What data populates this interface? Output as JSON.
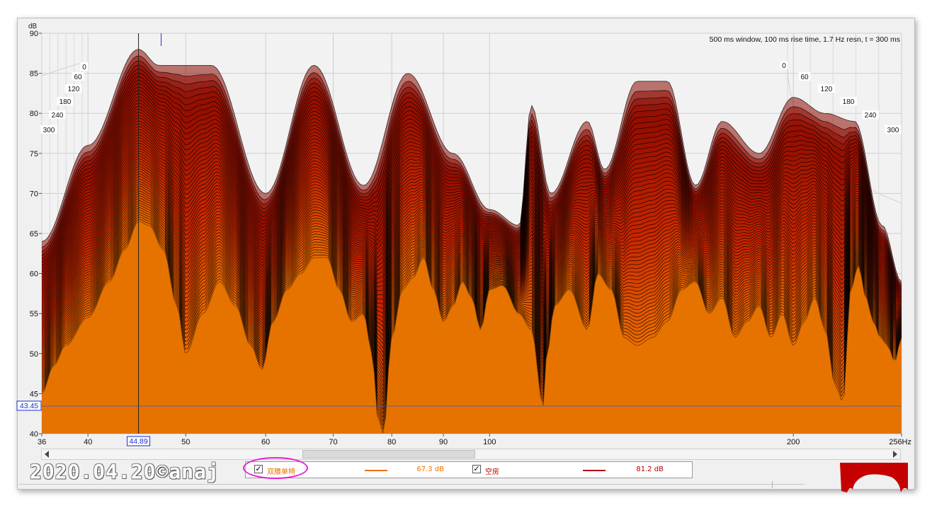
{
  "window": {
    "title": ""
  },
  "chart_data": {
    "type": "waterfall",
    "x_unit": "Hz",
    "y_unit": "dB",
    "xscale": "log",
    "xlim": [
      36,
      256
    ],
    "ylim": [
      40,
      90
    ],
    "x_ticks": [
      36,
      40,
      50,
      60,
      70,
      80,
      90,
      100,
      200,
      256
    ],
    "x_tick_labels": [
      "36",
      "40",
      "50",
      "60",
      "70",
      "80",
      "90",
      "100",
      "200",
      "256Hz"
    ],
    "y_ticks": [
      40,
      45,
      50,
      55,
      60,
      65,
      70,
      75,
      80,
      85,
      90
    ],
    "y_unit_label": "dB",
    "info_text": "500 ms window, 100 ms rise time,  1.7 Hz resn, t = 300 ms",
    "time_ticks_left": [
      "0",
      "60",
      "120",
      "180",
      "240",
      "300"
    ],
    "time_ticks_right": [
      "0",
      "60",
      "120",
      "180",
      "240",
      "300"
    ],
    "cursor": {
      "x": 44.89,
      "x_label": "44.89",
      "y": 43.45,
      "y_label": "43.45"
    },
    "grid": true,
    "slice_count": 60,
    "front_curve_300ms": {
      "x": [
        36,
        37,
        38,
        40,
        42,
        43.5,
        44.89,
        46,
        47.5,
        49,
        50,
        52,
        54,
        56,
        58,
        59.5,
        61,
        63,
        65,
        67,
        69,
        71,
        73,
        75,
        76.5,
        77.5,
        78.5,
        80,
        82,
        84,
        86,
        88,
        90,
        92,
        94,
        96,
        98,
        100,
        103,
        107,
        110,
        113,
        114,
        116,
        120,
        125,
        128,
        132,
        136,
        140,
        145,
        150,
        155,
        160,
        165,
        170,
        175,
        180,
        185,
        190,
        195,
        200,
        205,
        210,
        215,
        220,
        224,
        228,
        232,
        236,
        240,
        244,
        248,
        252,
        256
      ],
      "y": [
        45,
        48.5,
        51,
        54.5,
        59,
        63,
        66.5,
        66,
        63,
        56,
        50,
        55,
        59,
        56,
        51,
        48,
        54,
        58,
        60,
        62,
        62,
        58,
        54,
        55,
        50,
        42,
        40,
        52,
        58,
        59.5,
        62,
        58,
        54,
        56,
        59,
        57,
        53,
        58,
        58.5,
        55,
        53,
        43.5,
        50,
        56,
        58,
        53,
        60,
        58,
        52,
        51,
        52,
        54,
        58,
        59,
        55,
        57,
        52,
        54,
        56,
        52,
        55,
        51,
        54,
        57,
        53,
        46,
        44,
        58,
        61,
        57,
        54,
        52,
        51,
        49,
        52
      ]
    },
    "back_curve_0ms": {
      "x": [
        36,
        40,
        44.89,
        47,
        53,
        60,
        67,
        75,
        83,
        92,
        100,
        107,
        110,
        115,
        125,
        130,
        140,
        150,
        160,
        170,
        185,
        200,
        215,
        230,
        245,
        256
      ],
      "y": [
        64,
        76,
        88,
        86,
        86,
        70,
        86,
        71,
        85,
        75,
        68,
        66,
        81,
        70,
        79,
        73,
        84,
        84,
        71,
        79,
        75,
        82,
        80,
        79,
        66,
        59
      ]
    },
    "series": [
      {
        "name": "双腰单椅",
        "value_label": "67.3 dB",
        "color": "#ee7000",
        "checked": true
      },
      {
        "name": "空房",
        "value_label": "81.2 dB",
        "color": "#b30000",
        "checked": true
      }
    ]
  },
  "watermark": "2020.04.20©anaj"
}
